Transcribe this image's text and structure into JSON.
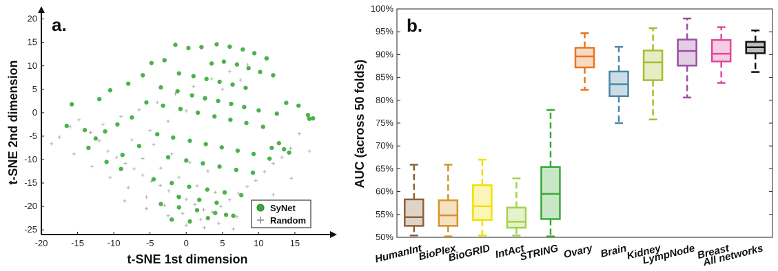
{
  "chart_data": [
    {
      "type": "scatter",
      "panel_label": "a.",
      "xlabel": "t-SNE 1st dimension",
      "ylabel": "t-SNE 2nd dimension",
      "xlim": [
        -20,
        19
      ],
      "ylim": [
        -26,
        22
      ],
      "xticks": [
        -20,
        -15,
        -10,
        -5,
        0,
        5,
        10,
        15
      ],
      "yticks": [
        -25,
        -20,
        -15,
        -10,
        -5,
        0,
        5,
        10,
        15,
        20
      ],
      "legend": {
        "position": "bottom-right"
      },
      "series": [
        {
          "name": "SyNet",
          "color": "#3aaa35",
          "marker": "circle",
          "x": [
            -1.5,
            0.3,
            2.1,
            4.2,
            6.0,
            7.8,
            9.4,
            11.1,
            -3.0,
            -4.8,
            3.5,
            5.2,
            7.0,
            8.6,
            10.2,
            12.0,
            -1.0,
            1.0,
            2.8,
            4.6,
            6.4,
            8.2,
            -6.0,
            -8.0,
            -10.5,
            -12.0,
            -15.8,
            -16.5,
            -14.0,
            -3.5,
            -1.2,
            0.8,
            2.6,
            4.4,
            6.2,
            8.0,
            10.0,
            12.5,
            13.8,
            15.5,
            17.0,
            -5.5,
            -3.2,
            -0.8,
            1.6,
            3.9,
            6.1,
            8.3,
            10.6,
            -7.5,
            -9.5,
            -11.2,
            -4.0,
            -1.8,
            0.5,
            2.7,
            4.9,
            7.1,
            9.3,
            11.8,
            -6.5,
            -8.8,
            -2.5,
            0.0,
            2.3,
            4.6,
            6.9,
            9.2,
            11.5,
            -4.5,
            -2.0,
            0.4,
            2.9,
            5.3,
            7.6,
            -3.5,
            -1.0,
            1.5,
            4.0,
            6.5,
            -2.0,
            0.5,
            3.0,
            5.5,
            -1.0,
            1.8,
            4.2,
            -12.5,
            -13.5,
            -11.0,
            -9.0,
            12.8,
            13.5,
            14.2,
            16.8,
            17.5
          ],
          "y": [
            14.5,
            13.8,
            14.0,
            14.6,
            14.1,
            13.5,
            12.7,
            11.6,
            11.2,
            10.6,
            10.5,
            10.9,
            10.3,
            9.5,
            8.7,
            8.0,
            8.4,
            7.8,
            7.2,
            6.6,
            6.0,
            5.3,
            8.0,
            6.2,
            4.8,
            2.9,
            1.8,
            -2.8,
            -3.7,
            5.4,
            4.6,
            3.7,
            3.1,
            2.5,
            1.9,
            1.2,
            0.5,
            -0.2,
            2.1,
            1.5,
            -1.3,
            2.2,
            1.5,
            0.8,
            0.0,
            -0.8,
            -1.5,
            -2.2,
            -3.0,
            -1.0,
            -2.5,
            -4.0,
            -4.6,
            -5.3,
            -6.0,
            -6.7,
            -7.4,
            -8.1,
            -8.8,
            -7.5,
            -7.1,
            -9.0,
            -9.5,
            -10.2,
            -10.8,
            -11.5,
            -12.2,
            -12.8,
            -9.8,
            -14.2,
            -15.0,
            -15.8,
            -16.4,
            -17.0,
            -17.6,
            -19.5,
            -20.2,
            -20.8,
            -21.4,
            -22.0,
            -22.8,
            -23.2,
            -22.5,
            -21.8,
            -18.0,
            -18.6,
            -19.2,
            -5.5,
            -7.5,
            -10.5,
            -12.0,
            -6.5,
            -7.8,
            -8.5,
            -0.5,
            -1.2
          ]
        },
        {
          "name": "Random",
          "color": "#999999",
          "marker": "plus",
          "x": [
            -17.5,
            -18.6,
            -16.0,
            -14.8,
            -13.2,
            -12.0,
            -10.8,
            -9.6,
            -8.4,
            -7.2,
            -6.0,
            -4.8,
            -3.6,
            -2.4,
            -1.2,
            0.0,
            1.2,
            2.4,
            3.6,
            4.8,
            6.0,
            7.2,
            8.4,
            9.6,
            10.8,
            12.0,
            13.2,
            14.4,
            15.6,
            16.8,
            -15.5,
            -13.0,
            -10.5,
            -8.0,
            -5.5,
            -3.0,
            -0.5,
            2.0,
            4.5,
            7.0,
            9.5,
            12.0,
            14.5,
            17.0,
            -11.5,
            -9.0,
            -6.5,
            -4.0,
            -1.5,
            1.0,
            3.5,
            6.0,
            8.5,
            11.0,
            -7.5,
            -5.0,
            -2.5,
            0.0,
            2.5,
            5.0,
            7.5,
            -6.0,
            -3.5,
            -1.0,
            1.5,
            4.0,
            -4.5,
            -2.0,
            0.5,
            3.0,
            -2.5,
            0.0,
            2.5,
            -8.5,
            -5.5,
            6.5,
            10.0
          ],
          "y": [
            -5.2,
            -6.6,
            -3.0,
            -1.5,
            -4.2,
            -6.0,
            -8.2,
            -9.5,
            -10.8,
            -12.0,
            -13.3,
            -14.6,
            -15.5,
            -16.7,
            -17.8,
            -18.5,
            -19.6,
            -20.7,
            -21.2,
            -20.0,
            -18.6,
            -17.2,
            -15.8,
            -14.5,
            -12.6,
            -10.8,
            -9.5,
            -7.6,
            -4.5,
            -1.2,
            -8.8,
            -11.5,
            -13.8,
            -16.0,
            -18.0,
            -19.8,
            -21.5,
            -22.8,
            -23.6,
            -22.2,
            -20.5,
            -17.5,
            -14.0,
            -8.2,
            -2.5,
            -0.8,
            0.6,
            2.2,
            4.0,
            5.6,
            7.2,
            8.8,
            10.2,
            11.5,
            -5.8,
            -3.8,
            -1.8,
            0.4,
            2.8,
            5.0,
            7.0,
            -9.8,
            -11.8,
            -13.8,
            -15.6,
            -17.0,
            -6.8,
            -8.8,
            -10.6,
            -12.5,
            -22.0,
            -24.0,
            -24.5,
            -18.8,
            -20.5,
            -24.8,
            -21.0
          ]
        }
      ]
    },
    {
      "type": "boxplot",
      "panel_label": "b.",
      "ylabel": "AUC (across 50 folds)",
      "ylim": [
        50,
        100
      ],
      "yticks": [
        50,
        55,
        60,
        65,
        70,
        75,
        80,
        85,
        90,
        95,
        100
      ],
      "ytick_labels": [
        "50%",
        "55%",
        "60%",
        "65%",
        "70%",
        "75%",
        "80%",
        "85%",
        "90%",
        "95%",
        "100%"
      ],
      "categories": [
        "HumanInt",
        "BioPlex",
        "BioGRID",
        "IntAct",
        "STRING",
        "Ovary",
        "Brain",
        "Kidney",
        "LympNode",
        "Breast",
        "All networks"
      ],
      "boxes": [
        {
          "whisker_low": 50.4,
          "q1": 52.5,
          "median": 54.4,
          "q3": 58.3,
          "whisker_high": 65.9,
          "color": "#8c6239"
        },
        {
          "whisker_low": 50.2,
          "q1": 52.5,
          "median": 54.8,
          "q3": 58.1,
          "whisker_high": 65.9,
          "color": "#d6932a"
        },
        {
          "whisker_low": 50.4,
          "q1": 53.8,
          "median": 56.8,
          "q3": 61.4,
          "whisker_high": 67.0,
          "color": "#f0e000"
        },
        {
          "whisker_low": 50.4,
          "q1": 52.1,
          "median": 53.4,
          "q3": 56.5,
          "whisker_high": 62.9,
          "color": "#a3d14a"
        },
        {
          "whisker_low": 50.2,
          "q1": 54.0,
          "median": 59.5,
          "q3": 65.4,
          "whisker_high": 77.9,
          "color": "#3aaa35"
        },
        {
          "whisker_low": 82.3,
          "q1": 87.2,
          "median": 89.6,
          "q3": 91.5,
          "whisker_high": 94.7,
          "color": "#e8761e"
        },
        {
          "whisker_low": 75.0,
          "q1": 80.9,
          "median": 83.5,
          "q3": 86.3,
          "whisker_high": 91.7,
          "color": "#4a86a8"
        },
        {
          "whisker_low": 75.8,
          "q1": 84.4,
          "median": 88.3,
          "q3": 90.9,
          "whisker_high": 95.8,
          "color": "#a6bd2e"
        },
        {
          "whisker_low": 80.6,
          "q1": 87.6,
          "median": 90.8,
          "q3": 93.3,
          "whisker_high": 97.9,
          "color": "#9b4fa0"
        },
        {
          "whisker_low": 83.8,
          "q1": 88.5,
          "median": 90.2,
          "q3": 93.2,
          "whisker_high": 96.0,
          "color": "#e0489a"
        },
        {
          "whisker_low": 86.2,
          "q1": 90.3,
          "median": 91.6,
          "q3": 92.8,
          "whisker_high": 95.3,
          "color": "#111111"
        }
      ]
    }
  ]
}
